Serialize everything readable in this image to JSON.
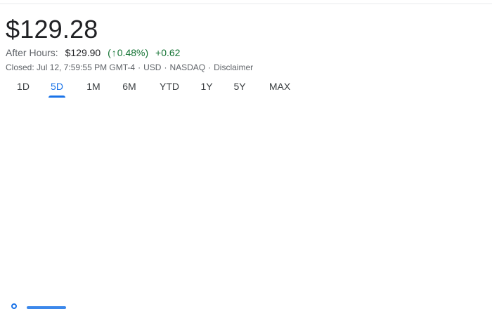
{
  "quote": {
    "price": "$129.28",
    "after_hours": {
      "label": "After Hours:",
      "price": "$129.90",
      "open_paren": "(",
      "arrow": "↑",
      "percent": "0.48%",
      "close_paren": ")",
      "change": "+0.62"
    },
    "closed": {
      "text": "Closed: Jul 12, 7:59:55 PM GMT-4",
      "sep": "·",
      "currency": "USD",
      "exchange": "NASDAQ",
      "disclaimer": "Disclaimer"
    }
  },
  "range_tabs": [
    {
      "label": "1D",
      "active": false
    },
    {
      "label": "5D",
      "active": true
    },
    {
      "label": "1M",
      "active": false
    },
    {
      "label": "6M",
      "active": false
    },
    {
      "label": "YTD",
      "active": false
    },
    {
      "label": "1Y",
      "active": false
    },
    {
      "label": "5Y",
      "active": false
    },
    {
      "label": "MAX",
      "active": false
    }
  ],
  "colors": {
    "accent": "#1a73e8",
    "positive": "#137333",
    "muted": "#5f6368"
  }
}
